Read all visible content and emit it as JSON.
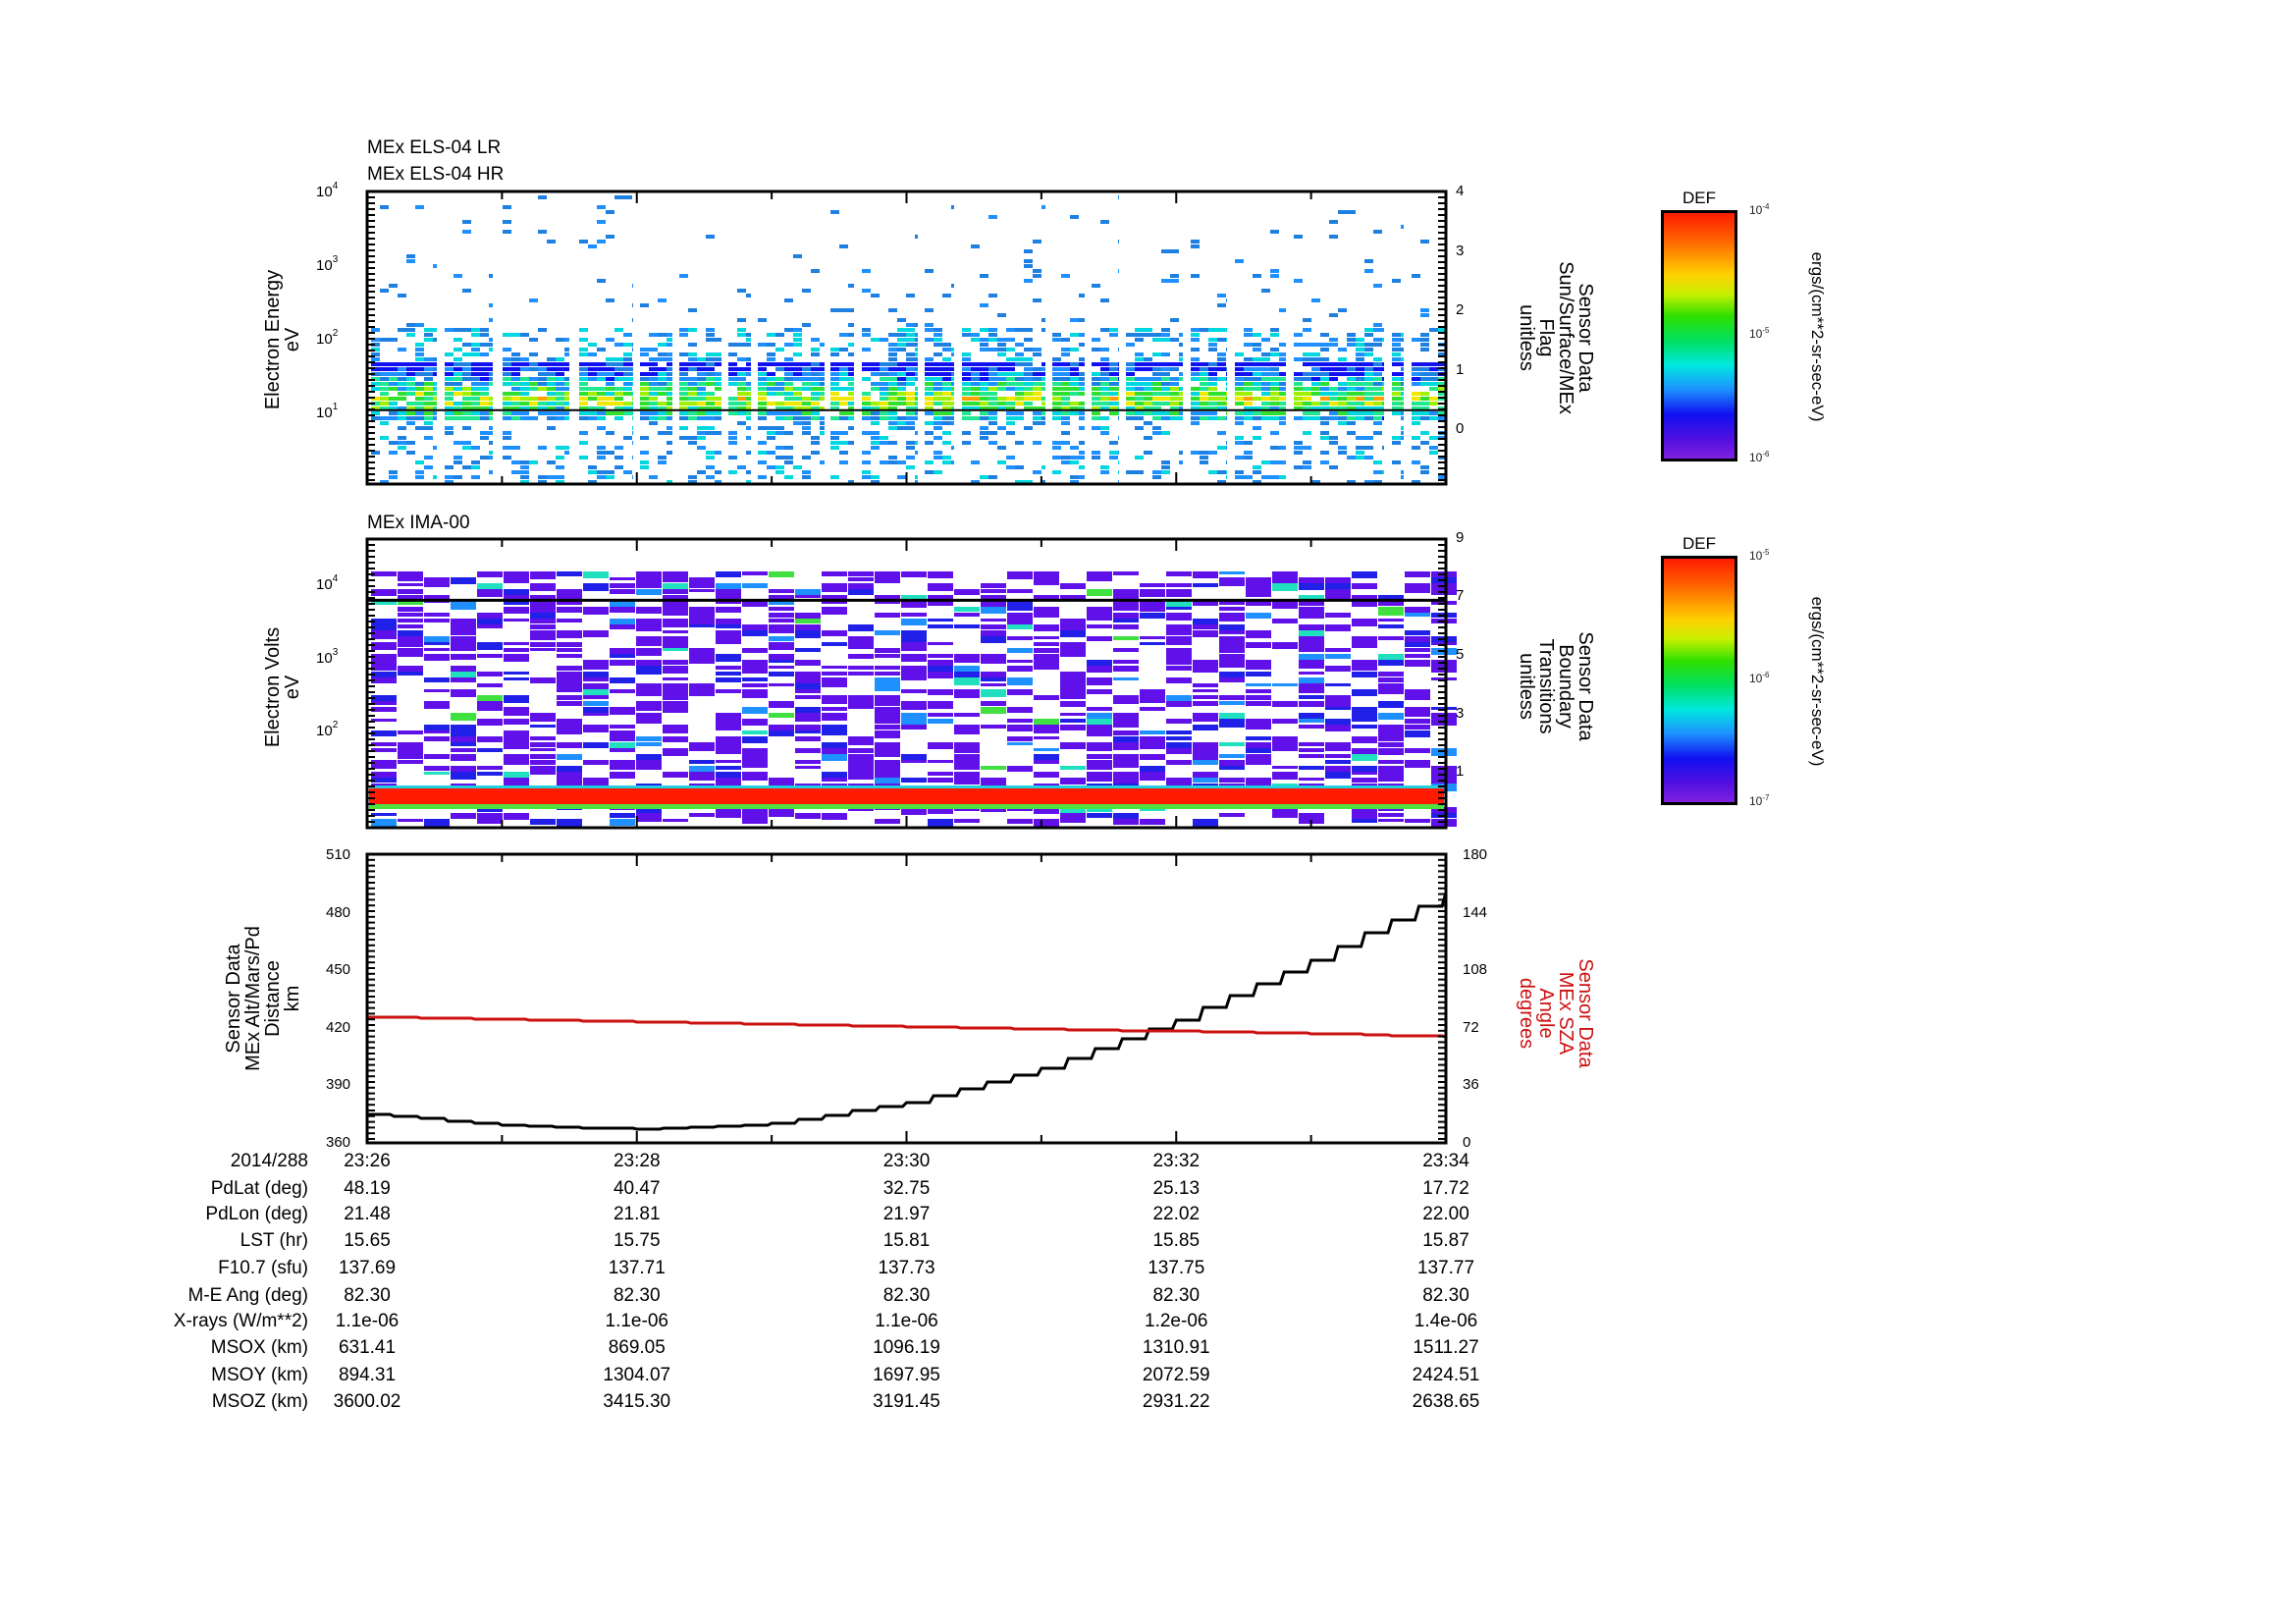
{
  "chart_data": [
    {
      "type": "heatmap",
      "title": [
        "MEx ELS-04 LR",
        "MEx ELS-04 HR"
      ],
      "ylabel": [
        "Electron Energy",
        "eV"
      ],
      "yscale": "log",
      "ylim": [
        1.5,
        10000
      ],
      "yticks": [
        {
          "base": "10",
          "exp": "4",
          "value": 10000
        },
        {
          "base": "10",
          "exp": "3",
          "value": 1000
        },
        {
          "base": "10",
          "exp": "2",
          "value": 100
        },
        {
          "base": "10",
          "exp": "1",
          "value": 10
        }
      ],
      "y2label": [
        "Sensor Data",
        "Sun/Surface/MEx",
        "Flag",
        "unitless"
      ],
      "y2lim": [
        -1.35,
        4
      ],
      "y2ticks": [
        "4",
        "3",
        "2",
        "1",
        "0"
      ],
      "y2_line_value": 0,
      "x_range": [
        "23:26",
        "23:34"
      ],
      "colorbar": {
        "title": "DEF",
        "max": {
          "base": "10",
          "exp": "-4"
        },
        "mid": {
          "base": "10",
          "exp": "-5"
        },
        "min": {
          "base": "10",
          "exp": "-6"
        },
        "unit": "ergs/(cm**2-sr-sec-eV)"
      },
      "description": "Electron energy spectrogram; dense flux band ~7-50 eV (green/yellow with red core near 15-20 eV), sparse blue pixels up to ~5000 eV, periodic white data gaps; flag line constant at 0"
    },
    {
      "type": "heatmap",
      "title": [
        "MEx IMA-00"
      ],
      "ylabel": [
        "Electron Volts",
        "eV"
      ],
      "yscale": "log",
      "ylim": [
        8,
        30000
      ],
      "yticks": [
        {
          "base": "10",
          "exp": "4",
          "value": 10000
        },
        {
          "base": "10",
          "exp": "3",
          "value": 1000
        },
        {
          "base": "10",
          "exp": "2",
          "value": 100
        }
      ],
      "y2label": [
        "Sensor Data",
        "Boundary",
        "Transitions",
        "unitless"
      ],
      "y2lim": [
        -0.9,
        9
      ],
      "y2ticks": [
        "9",
        "7",
        "5",
        "3",
        "1"
      ],
      "y2_line_value": 6.9,
      "x_range": [
        "23:26",
        "23:34"
      ],
      "colorbar": {
        "title": "DEF",
        "max": {
          "base": "10",
          "exp": "-5"
        },
        "mid": {
          "base": "10",
          "exp": "-6"
        },
        "min": {
          "base": "10",
          "exp": "-7"
        },
        "unit": "ergs/(cm**2-sr-sec-eV)"
      },
      "description": "Ion spectrogram; mostly low-level violet/blue bins across 20 eV-15 keV in ~27-px time columns; intense red band at ~15-20 eV across the whole interval"
    },
    {
      "type": "line",
      "ylabel": [
        "Sensor Data",
        "MEx Alt/Mars/Pd",
        "Distance",
        "km"
      ],
      "ylim": [
        360,
        510
      ],
      "yticks": [
        "510",
        "480",
        "450",
        "420",
        "390",
        "360"
      ],
      "y2label": [
        "Sensor Data",
        "MEx SZA",
        "Angle",
        "degrees"
      ],
      "y2lim": [
        0,
        180
      ],
      "y2ticks": [
        "180",
        "144",
        "108",
        "72",
        "36",
        "0"
      ],
      "x": [
        "23:26",
        "23:27",
        "23:28",
        "23:29",
        "23:30",
        "23:31",
        "23:32",
        "23:33",
        "23:34"
      ],
      "series": [
        {
          "name": "MEx Alt/Mars/Pd Distance (km)",
          "axis": "left",
          "color": "#000000",
          "values": [
            375,
            369,
            367,
            370,
            381,
            399,
            424,
            455,
            490
          ]
        },
        {
          "name": "MEx SZA Angle (degrees)",
          "axis": "right",
          "color": "#cc1111",
          "values": [
            78.5,
            77.0,
            75.5,
            74.0,
            72.5,
            71.0,
            69.5,
            68.0,
            66.3
          ]
        }
      ]
    }
  ],
  "time_axis": {
    "labels": [
      "23:26",
      "23:28",
      "23:30",
      "23:32",
      "23:34"
    ],
    "minor_every_minute": true
  },
  "ancillary": {
    "rows": [
      {
        "label": "2014/288",
        "values": [
          "23:26",
          "23:28",
          "23:30",
          "23:32",
          "23:34"
        ]
      },
      {
        "label": "PdLat (deg)",
        "values": [
          "48.19",
          "40.47",
          "32.75",
          "25.13",
          "17.72"
        ]
      },
      {
        "label": "PdLon (deg)",
        "values": [
          "21.48",
          "21.81",
          "21.97",
          "22.02",
          "22.00"
        ]
      },
      {
        "label": "LST (hr)",
        "values": [
          "15.65",
          "15.75",
          "15.81",
          "15.85",
          "15.87"
        ]
      },
      {
        "label": "F10.7 (sfu)",
        "values": [
          "137.69",
          "137.71",
          "137.73",
          "137.75",
          "137.77"
        ]
      },
      {
        "label": "M-E Ang (deg)",
        "values": [
          "82.30",
          "82.30",
          "82.30",
          "82.30",
          "82.30"
        ]
      },
      {
        "label": "X-rays (W/m**2)",
        "values": [
          "1.1e-06",
          "1.1e-06",
          "1.1e-06",
          "1.2e-06",
          "1.4e-06"
        ]
      },
      {
        "label": "MSOX (km)",
        "values": [
          "631.41",
          "869.05",
          "1096.19",
          "1310.91",
          "1511.27"
        ]
      },
      {
        "label": "MSOY (km)",
        "values": [
          "894.31",
          "1304.07",
          "1697.95",
          "2072.59",
          "2424.51"
        ]
      },
      {
        "label": "MSOZ (km)",
        "values": [
          "3600.02",
          "3415.30",
          "3191.45",
          "2931.22",
          "2638.65"
        ]
      }
    ]
  },
  "colors": {
    "sza_line": "#cc1111",
    "axis": "#000000"
  }
}
